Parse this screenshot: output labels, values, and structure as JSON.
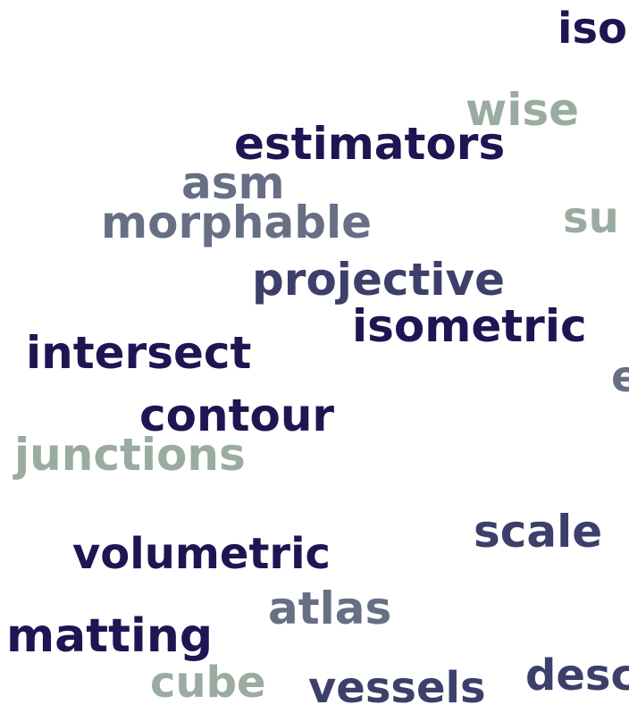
{
  "words": {
    "w01": "iso",
    "w02": "wise",
    "w03": "estimators",
    "w04": "asm",
    "w05": "morphable",
    "w06": "su",
    "w07": "projective",
    "w08": "isometric",
    "w09": "intersect",
    "w10": "e",
    "w11": "contour",
    "w12": "junctions",
    "w13": "scale",
    "w14": "volumetric",
    "w15": "atlas",
    "w16": "matting",
    "w17": "cube",
    "w18": "vessels",
    "w19": "desc"
  },
  "palette": {
    "navy": "#1f1553",
    "slate": "#3d3f6b",
    "gray": "#666f84",
    "sage": "#9aaba0"
  }
}
